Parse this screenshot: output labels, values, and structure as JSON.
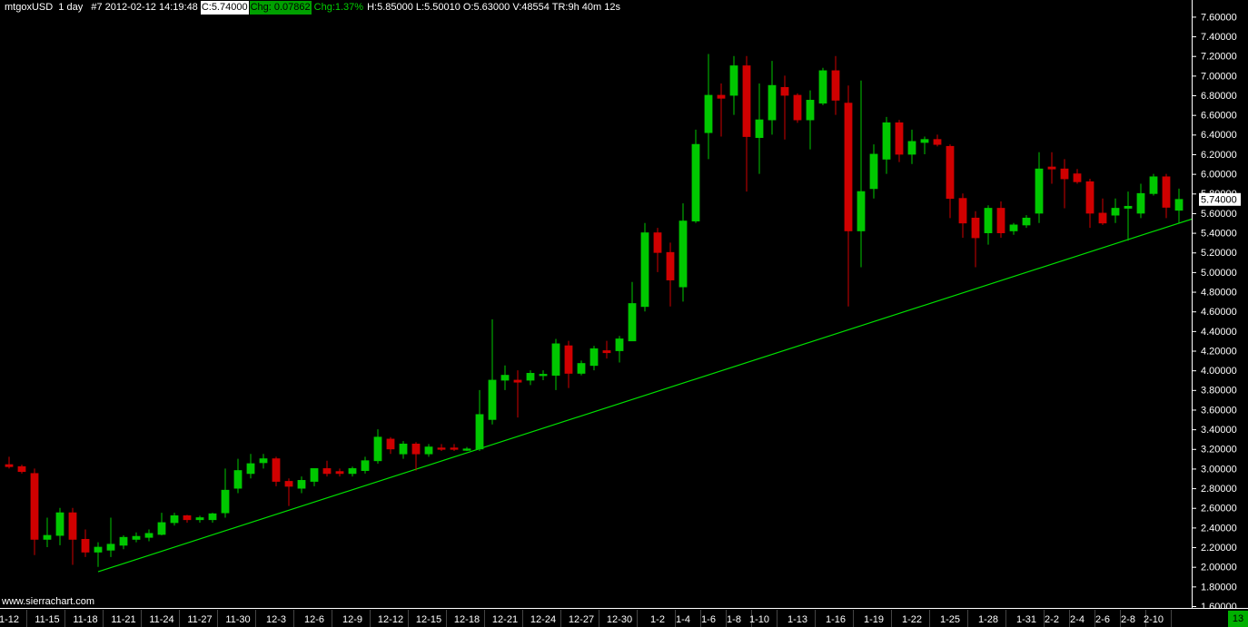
{
  "chart_data": {
    "type": "candlestick",
    "title": "mtgoxUSD  1 day   #7 2012-02-12 14:19:48",
    "close_label": "C:5.74000",
    "change_label": "Chg: 0.07862",
    "change_pct_label": "Chg:1.37%",
    "info": "H:5.85000 L:5.50010 O:5.63000 V:48554 TR:9h 40m 12s",
    "watermark": "www.sierrachart.com",
    "bar_count_label": "13",
    "last_price": {
      "value": 5.74,
      "label": "5.74000"
    },
    "up_color": "#00c800",
    "down_color": "#d00000",
    "categories": [
      "1-12",
      null,
      null,
      "11-15",
      null,
      null,
      "11-18",
      null,
      null,
      "11-21",
      null,
      null,
      "11-24",
      null,
      null,
      "11-27",
      null,
      null,
      "11-30",
      null,
      null,
      "12-3",
      null,
      null,
      "12-6",
      null,
      null,
      "12-9",
      null,
      null,
      "12-12",
      null,
      null,
      "12-15",
      null,
      null,
      "12-18",
      null,
      null,
      "12-21",
      null,
      null,
      "12-24",
      null,
      null,
      "12-27",
      null,
      null,
      "12-30",
      null,
      null,
      "1-2",
      null,
      "1-4",
      null,
      "1-6",
      null,
      "1-8",
      null,
      "1-10",
      null,
      null,
      "1-13",
      null,
      null,
      "1-16",
      null,
      null,
      "1-19",
      null,
      null,
      "1-22",
      null,
      null,
      "1-25",
      null,
      null,
      "1-28",
      null,
      null,
      "1-31",
      null,
      "2-2",
      null,
      "2-4",
      null,
      "2-6",
      null,
      "2-8",
      null,
      "2-10",
      null,
      null
    ],
    "open": [
      3.04,
      3.02,
      2.95,
      2.28,
      2.32,
      2.55,
      2.28,
      2.15,
      2.17,
      2.22,
      2.28,
      2.3,
      2.33,
      2.45,
      2.52,
      2.48,
      2.48,
      2.55,
      2.8,
      2.95,
      3.06,
      3.1,
      2.87,
      2.8,
      2.87,
      3.0,
      2.97,
      2.95,
      2.98,
      3.08,
      3.3,
      3.15,
      3.25,
      3.15,
      3.21,
      3.21,
      3.19,
      3.2,
      3.5,
      3.9,
      3.9,
      3.9,
      3.95,
      3.95,
      4.25,
      3.97,
      4.05,
      4.2,
      4.2,
      4.3,
      4.65,
      5.4,
      5.2,
      4.85,
      5.52,
      6.42,
      6.8,
      6.8,
      7.1,
      6.37,
      6.55,
      6.88,
      6.8,
      6.55,
      6.72,
      7.05,
      6.72,
      5.42,
      5.85,
      6.15,
      6.52,
      6.2,
      6.32,
      6.35,
      6.28,
      5.75,
      5.55,
      5.4,
      5.65,
      5.42,
      5.48,
      5.6,
      6.07,
      6.05,
      6.0,
      5.92,
      5.6,
      5.58,
      5.65,
      5.6,
      5.8,
      5.97,
      5.63
    ],
    "high": [
      3.12,
      3.04,
      3.0,
      2.5,
      2.6,
      2.6,
      2.38,
      2.25,
      2.5,
      2.32,
      2.35,
      2.38,
      2.55,
      2.55,
      2.53,
      2.52,
      2.55,
      3.0,
      3.1,
      3.15,
      3.15,
      3.12,
      2.9,
      2.92,
      3.0,
      3.08,
      3.0,
      3.02,
      3.12,
      3.4,
      3.32,
      3.28,
      3.27,
      3.25,
      3.25,
      3.25,
      3.22,
      3.8,
      4.52,
      4.05,
      4.0,
      4.0,
      4.0,
      4.32,
      4.3,
      4.1,
      4.25,
      4.3,
      4.35,
      4.9,
      5.5,
      5.45,
      5.3,
      5.7,
      6.45,
      7.22,
      6.92,
      7.2,
      7.2,
      6.92,
      7.15,
      7.0,
      6.82,
      6.85,
      7.08,
      7.2,
      6.9,
      6.95,
      6.3,
      6.58,
      6.55,
      6.45,
      6.38,
      6.4,
      6.3,
      5.8,
      5.62,
      5.68,
      5.72,
      5.5,
      5.58,
      6.22,
      6.22,
      6.15,
      6.05,
      5.95,
      5.75,
      5.75,
      5.82,
      5.9,
      6.0,
      6.0,
      5.85
    ],
    "low": [
      3.0,
      2.95,
      2.12,
      2.2,
      2.22,
      2.02,
      2.1,
      2.0,
      2.1,
      2.18,
      2.25,
      2.26,
      2.32,
      2.42,
      2.45,
      2.45,
      2.45,
      2.5,
      2.75,
      2.9,
      3.0,
      2.82,
      2.62,
      2.75,
      2.82,
      2.92,
      2.92,
      2.92,
      2.95,
      3.05,
      3.15,
      3.1,
      2.98,
      3.12,
      3.18,
      3.18,
      3.18,
      3.18,
      3.45,
      3.8,
      3.52,
      3.85,
      3.9,
      3.8,
      3.82,
      3.95,
      4.0,
      4.12,
      4.08,
      4.3,
      4.6,
      5.0,
      4.65,
      4.7,
      5.5,
      6.15,
      6.38,
      6.6,
      5.82,
      6.0,
      6.4,
      6.35,
      6.52,
      6.25,
      6.7,
      6.6,
      4.65,
      5.05,
      5.75,
      6.0,
      6.12,
      6.1,
      6.2,
      6.28,
      5.55,
      5.35,
      5.05,
      5.28,
      5.35,
      5.38,
      5.45,
      5.5,
      5.9,
      5.65,
      5.9,
      5.45,
      5.48,
      5.5,
      5.32,
      5.55,
      5.78,
      5.55,
      5.5
    ],
    "close": [
      3.02,
      2.97,
      2.28,
      2.32,
      2.55,
      2.28,
      2.15,
      2.2,
      2.23,
      2.3,
      2.31,
      2.34,
      2.45,
      2.52,
      2.48,
      2.5,
      2.54,
      2.78,
      2.98,
      3.05,
      3.1,
      2.87,
      2.82,
      2.88,
      3.0,
      2.95,
      2.95,
      3.0,
      3.08,
      3.32,
      3.2,
      3.25,
      3.15,
      3.22,
      3.2,
      3.2,
      3.2,
      3.55,
      3.9,
      3.95,
      3.88,
      3.97,
      3.96,
      4.27,
      3.97,
      4.07,
      4.22,
      4.18,
      4.32,
      4.68,
      5.4,
      5.2,
      4.92,
      5.52,
      6.3,
      6.8,
      6.77,
      7.1,
      6.38,
      6.55,
      6.9,
      6.8,
      6.55,
      6.75,
      7.05,
      6.75,
      5.42,
      5.82,
      6.2,
      6.52,
      6.2,
      6.33,
      6.35,
      6.3,
      5.75,
      5.5,
      5.35,
      5.65,
      5.4,
      5.48,
      5.55,
      6.05,
      6.05,
      5.95,
      5.92,
      5.6,
      5.5,
      5.65,
      5.67,
      5.8,
      5.97,
      5.66,
      5.74
    ],
    "trendline": {
      "x": [
        7,
        93
      ],
      "y": [
        1.95,
        5.54
      ],
      "color": "#00e000"
    },
    "ylim": [
      1.6,
      7.77
    ],
    "yticks": [
      {
        "value": 1.6,
        "label": "1.60000"
      },
      {
        "value": 1.8,
        "label": "1.80000"
      },
      {
        "value": 2.0,
        "label": "2.00000"
      },
      {
        "value": 2.2,
        "label": "2.20000"
      },
      {
        "value": 2.4,
        "label": "2.40000"
      },
      {
        "value": 2.6,
        "label": "2.60000"
      },
      {
        "value": 2.8,
        "label": "2.80000"
      },
      {
        "value": 3.0,
        "label": "3.00000"
      },
      {
        "value": 3.2,
        "label": "3.20000"
      },
      {
        "value": 3.4,
        "label": "3.40000"
      },
      {
        "value": 3.6,
        "label": "3.60000"
      },
      {
        "value": 3.8,
        "label": "3.80000"
      },
      {
        "value": 4.0,
        "label": "4.00000"
      },
      {
        "value": 4.2,
        "label": "4.20000"
      },
      {
        "value": 4.4,
        "label": "4.40000"
      },
      {
        "value": 4.6,
        "label": "4.60000"
      },
      {
        "value": 4.8,
        "label": "4.80000"
      },
      {
        "value": 5.0,
        "label": "5.00000"
      },
      {
        "value": 5.2,
        "label": "5.20000"
      },
      {
        "value": 5.4,
        "label": "5.40000"
      },
      {
        "value": 5.6,
        "label": "5.60000"
      },
      {
        "value": 5.8,
        "label": "5.80000"
      },
      {
        "value": 6.0,
        "label": "6.00000"
      },
      {
        "value": 6.2,
        "label": "6.20000"
      },
      {
        "value": 6.4,
        "label": "6.40000"
      },
      {
        "value": 6.6,
        "label": "6.60000"
      },
      {
        "value": 6.8,
        "label": "6.80000"
      },
      {
        "value": 7.0,
        "label": "7.00000"
      },
      {
        "value": 7.2,
        "label": "7.20000"
      },
      {
        "value": 7.4,
        "label": "7.40000"
      },
      {
        "value": 7.6,
        "label": "7.60000"
      }
    ],
    "grid": false
  }
}
